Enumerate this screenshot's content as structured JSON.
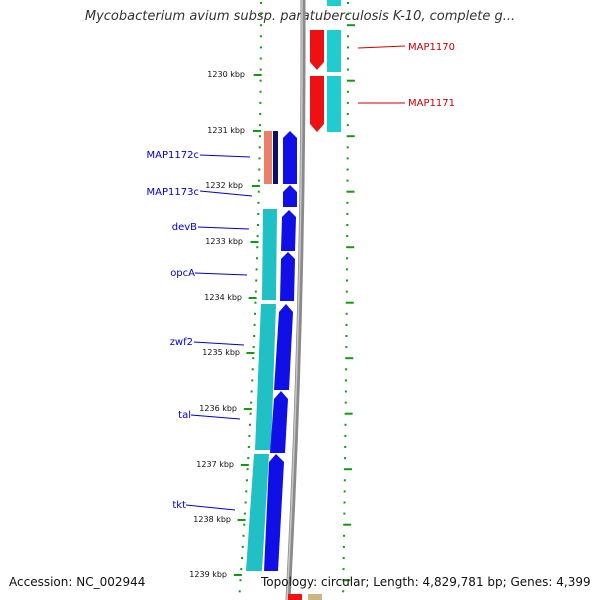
{
  "title": "Mycobacterium avium subsp. paratuberculosis K-10, complete g...",
  "footer": {
    "accession": "Accession: NC_002944",
    "topology": "Topology: circular; Length: 4,829,781 bp; Genes: 4,399"
  },
  "colors": {
    "tick": "#119911",
    "backbone": "#888888",
    "forward_gene": "#1010e6",
    "reverse_gene": "#20c8cc",
    "highlight_red": "#ee1111",
    "highlight_orange": "#e8806a",
    "label_blue": "#0000cc",
    "label_red": "#cc0000"
  },
  "ruler": {
    "labels": [
      "1230 kbp",
      "1231 kbp",
      "1232 kbp",
      "1233 kbp",
      "1234 kbp",
      "1235 kbp",
      "1236 kbp",
      "1237 kbp",
      "1238 kbp",
      "1239 kbp"
    ]
  },
  "genes_left": [
    {
      "name": "MAP1172c"
    },
    {
      "name": "MAP1173c"
    },
    {
      "name": "devB"
    },
    {
      "name": "opcA"
    },
    {
      "name": "zwf2"
    },
    {
      "name": "tal"
    },
    {
      "name": "tkt"
    }
  ],
  "genes_right": [
    {
      "name": "MAP1170"
    },
    {
      "name": "MAP1171"
    }
  ]
}
